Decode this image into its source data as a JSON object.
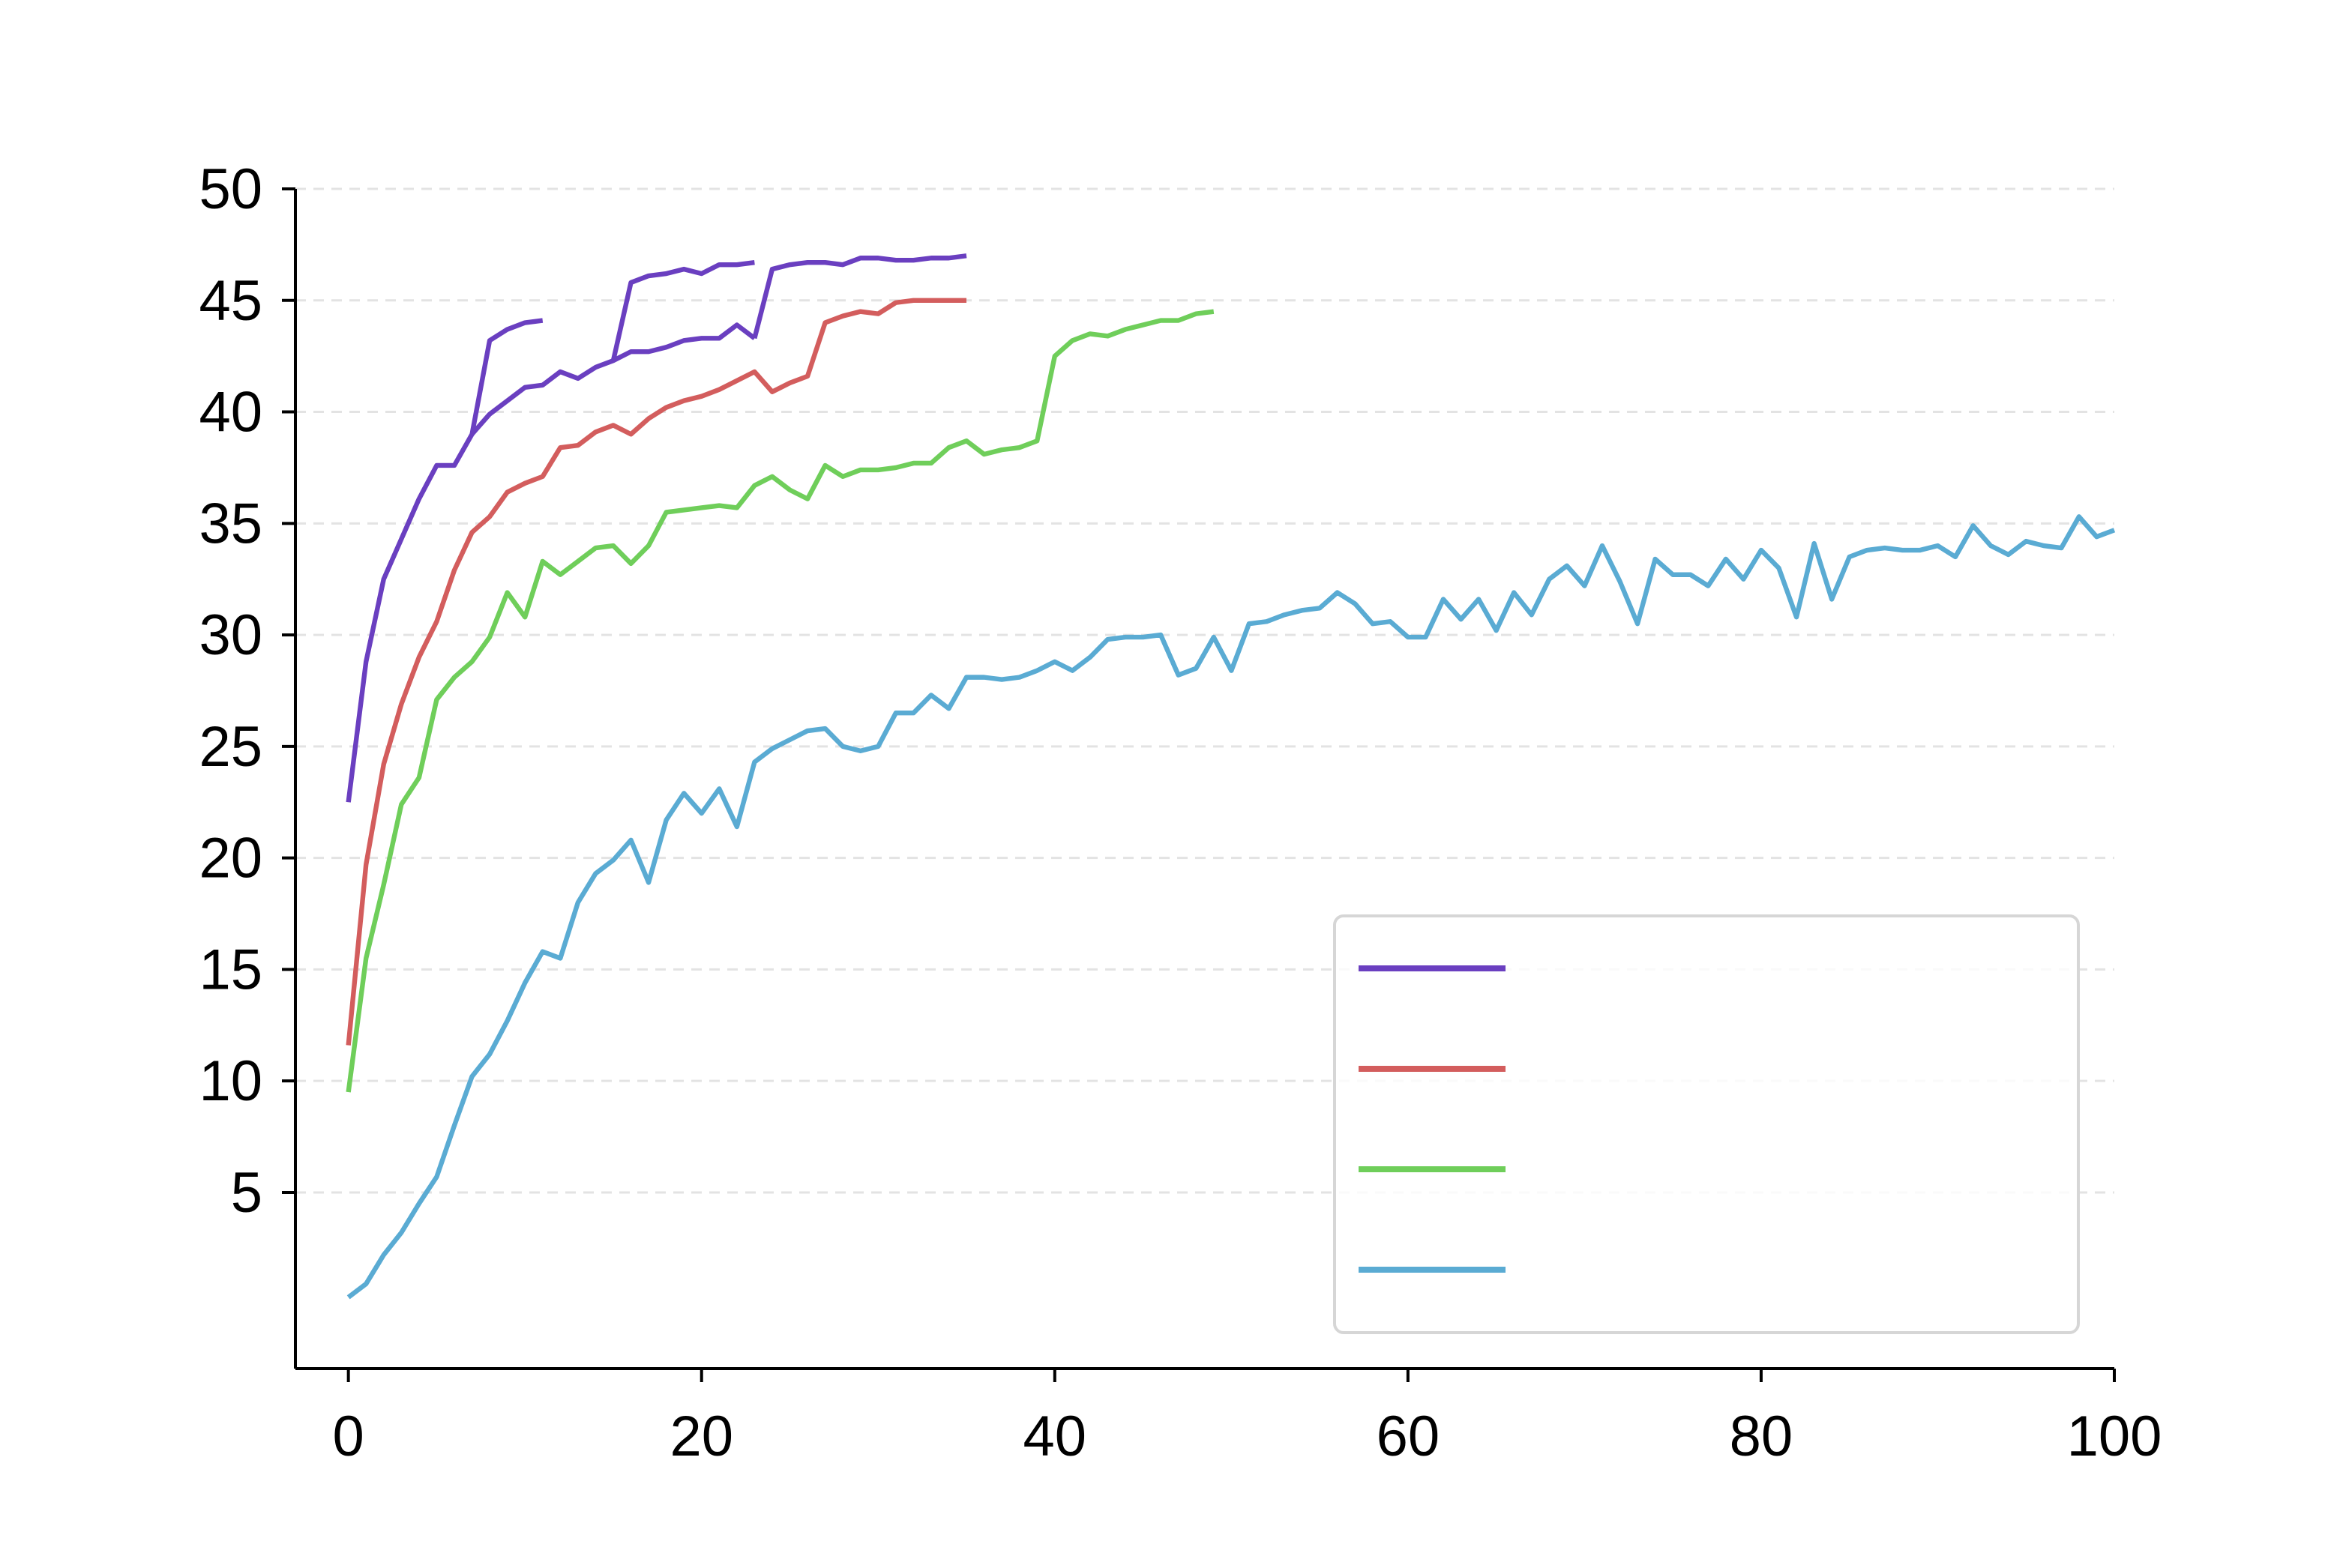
{
  "chart_data": {
    "type": "line",
    "xlim": [
      -3,
      100
    ],
    "xticks": [
      0,
      20,
      40,
      60,
      80,
      100
    ],
    "ylim": [
      -2.9,
      50
    ],
    "yticks": [
      5,
      10,
      15,
      20,
      25,
      30,
      35,
      40,
      45,
      50
    ],
    "grid": true,
    "legend": {
      "loc": "lower right",
      "colors": [
        "#6a3fc0",
        "#d35d5d",
        "#6fce5a",
        "#5aabd3"
      ]
    },
    "series": [
      {
        "color": "#6a3fc0",
        "x": [
          0,
          1,
          2,
          3,
          4,
          5,
          6,
          7,
          8,
          9,
          10,
          11
        ],
        "values": [
          22.5,
          28.8,
          32.5,
          34.3,
          36.1,
          37.6,
          37.6,
          39.0,
          43.2,
          43.7,
          44.0,
          44.1
        ]
      },
      {
        "color": "#6a3fc0",
        "x": [
          7,
          8,
          9,
          10,
          11,
          12,
          13,
          14,
          15,
          16,
          17,
          18,
          19,
          20,
          21,
          22,
          23
        ],
        "values": [
          39.0,
          39.9,
          40.5,
          41.1,
          41.2,
          41.8,
          41.5,
          42.0,
          42.3,
          42.7,
          42.7,
          42.9,
          43.2,
          43.3,
          43.3,
          43.9,
          43.3
        ]
      },
      {
        "color": "#6a3fc0",
        "x": [
          15,
          16,
          17,
          18,
          19,
          20,
          21,
          22,
          23
        ],
        "values": [
          42.3,
          45.8,
          46.1,
          46.2,
          46.4,
          46.2,
          46.6,
          46.6,
          46.7
        ]
      },
      {
        "color": "#6a3fc0",
        "x": [
          23,
          24,
          25,
          26,
          27,
          28,
          29,
          30,
          31,
          32,
          33,
          34,
          35
        ],
        "values": [
          43.3,
          46.4,
          46.6,
          46.7,
          46.7,
          46.6,
          46.9,
          46.9,
          46.8,
          46.8,
          46.9,
          46.9,
          47.0
        ]
      },
      {
        "color": "#d35d5d",
        "x": [
          0,
          1,
          2,
          3,
          4,
          5,
          6,
          7,
          8,
          9,
          10,
          11,
          12,
          13,
          14,
          15,
          16,
          17,
          18,
          19,
          20,
          21,
          22,
          23,
          24,
          25,
          26,
          27,
          28,
          29,
          30,
          31,
          32,
          33,
          34,
          35
        ],
        "values": [
          11.6,
          19.7,
          24.2,
          26.9,
          29.0,
          30.6,
          32.9,
          34.6,
          35.3,
          36.4,
          36.8,
          37.1,
          38.4,
          38.5,
          39.1,
          39.4,
          39.0,
          39.7,
          40.2,
          40.5,
          40.7,
          41.0,
          41.4,
          41.8,
          40.9,
          41.3,
          41.6,
          44.0,
          44.3,
          44.5,
          44.4,
          44.9,
          45.0,
          45.0,
          45.0,
          45.0
        ]
      },
      {
        "color": "#6fce5a",
        "x": [
          0,
          1,
          2,
          3,
          4,
          5,
          6,
          7,
          8,
          9,
          10,
          11,
          12,
          13,
          14,
          15,
          16,
          17,
          18,
          19,
          20,
          21,
          22,
          23,
          24,
          25,
          26,
          27,
          28,
          29,
          30,
          31,
          32,
          33,
          34,
          35,
          36,
          37,
          38,
          39,
          40,
          41,
          42,
          43,
          44,
          45,
          46,
          47,
          48,
          49
        ],
        "values": [
          9.5,
          15.5,
          18.8,
          22.4,
          23.6,
          27.1,
          28.1,
          28.8,
          29.9,
          31.9,
          30.8,
          33.3,
          32.7,
          33.3,
          33.9,
          34.0,
          33.2,
          34.0,
          35.5,
          35.6,
          35.7,
          35.8,
          35.7,
          36.7,
          37.1,
          36.5,
          36.1,
          37.6,
          37.1,
          37.4,
          37.4,
          37.5,
          37.7,
          37.7,
          38.4,
          38.7,
          38.1,
          38.3,
          38.4,
          38.7,
          42.5,
          43.2,
          43.5,
          43.4,
          43.7,
          43.9,
          44.1,
          44.1,
          44.4,
          44.5
        ]
      },
      {
        "color": "#5aabd3",
        "x": [
          0,
          1,
          2,
          3,
          4,
          5,
          6,
          7,
          8,
          9,
          10,
          11,
          12,
          13,
          14,
          15,
          16,
          17,
          18,
          19,
          20,
          21,
          22,
          23,
          24,
          25,
          26,
          27,
          28,
          29,
          30,
          31,
          32,
          33,
          34,
          35,
          36,
          37,
          38,
          39,
          40,
          41,
          42,
          43,
          44,
          45,
          46,
          47,
          48,
          49,
          50,
          51,
          52,
          53,
          54,
          55,
          56,
          57,
          58,
          59,
          60,
          61,
          62,
          63,
          64,
          65,
          66,
          67,
          68,
          69,
          70,
          71,
          72,
          73,
          74,
          75,
          76,
          77,
          78,
          79,
          80,
          81,
          82,
          83,
          84,
          85,
          86,
          87,
          88,
          89,
          90,
          91,
          92,
          93,
          94,
          95,
          96,
          97,
          98,
          99,
          100
        ],
        "values": [
          0.3,
          0.9,
          2.2,
          3.2,
          4.5,
          5.7,
          8.0,
          10.2,
          11.2,
          12.7,
          14.4,
          15.8,
          15.5,
          18.0,
          19.3,
          19.9,
          20.8,
          18.9,
          21.7,
          22.9,
          22.0,
          23.1,
          21.4,
          24.3,
          24.9,
          25.3,
          25.7,
          25.8,
          25.0,
          24.8,
          25.0,
          26.5,
          26.5,
          27.3,
          26.7,
          28.1,
          28.1,
          28.0,
          28.1,
          28.4,
          28.8,
          28.4,
          29.0,
          29.8,
          29.9,
          29.9,
          30.0,
          28.2,
          28.5,
          29.9,
          28.4,
          30.5,
          30.6,
          30.9,
          31.1,
          31.2,
          31.9,
          31.4,
          30.5,
          30.6,
          29.9,
          29.9,
          31.6,
          30.7,
          31.6,
          30.2,
          31.9,
          30.9,
          32.5,
          33.1,
          32.2,
          34.0,
          32.4,
          30.5,
          33.4,
          32.7,
          32.7,
          32.2,
          33.4,
          32.5,
          33.8,
          33.0,
          30.8,
          34.1,
          31.6,
          33.5,
          33.8,
          33.9,
          33.8,
          33.8,
          34.0,
          33.5,
          34.9,
          34.0,
          33.6,
          34.2,
          34.0,
          33.9,
          35.3,
          34.4,
          34.7
        ]
      }
    ]
  }
}
